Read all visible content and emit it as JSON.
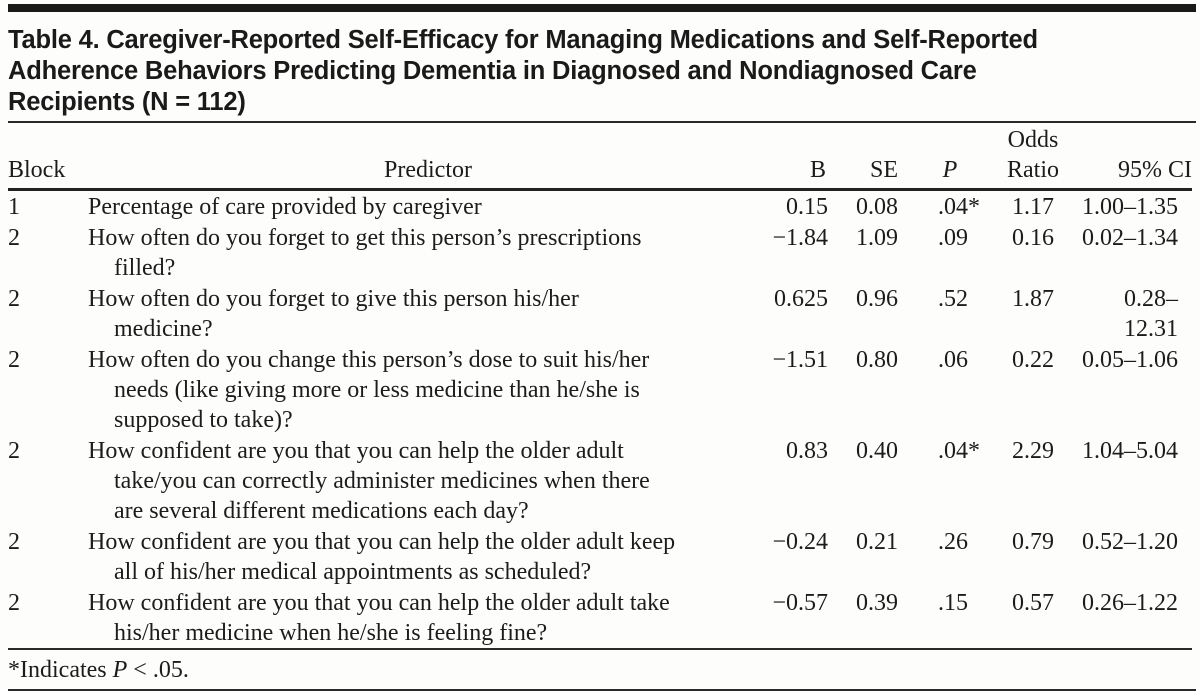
{
  "title": "Table 4. Caregiver-Reported Self-Efficacy for Managing Medications and Self-Reported\nAdherence Behaviors Predicting Dementia in Diagnosed and Nondiagnosed Care\nRecipients (N = 112)",
  "table": {
    "columns": {
      "block": "Block",
      "predictor": "Predictor",
      "b": "B",
      "se": "SE",
      "p": "P",
      "odds_ratio": "Odds\nRatio",
      "ci": "95% CI"
    },
    "rows": [
      {
        "block": "1",
        "predictor": "Percentage of care provided by caregiver",
        "b": "0.15",
        "se": "0.08",
        "p": ".04*",
        "odds_ratio": "1.17",
        "ci": "1.00–1.35"
      },
      {
        "block": "2",
        "predictor": "How often do you forget to get this person’s prescriptions\nfilled?",
        "b": "−1.84",
        "se": "1.09",
        "p": ".09",
        "odds_ratio": "0.16",
        "ci": "0.02–1.34"
      },
      {
        "block": "2",
        "predictor": "How often do you forget to give this person his/her\nmedicine?",
        "b": "0.625",
        "se": "0.96",
        "p": ".52",
        "odds_ratio": "1.87",
        "ci": "0.28–12.31"
      },
      {
        "block": "2",
        "predictor": "How often do you change this person’s dose to suit his/her\nneeds (like giving more or less medicine than he/she is\nsupposed to take)?",
        "b": "−1.51",
        "se": "0.80",
        "p": ".06",
        "odds_ratio": "0.22",
        "ci": "0.05–1.06"
      },
      {
        "block": "2",
        "predictor": "How confident are you that you can help the older adult\ntake/you can correctly administer medicines when there\nare several different medications each day?",
        "b": "0.83",
        "se": "0.40",
        "p": ".04*",
        "odds_ratio": "2.29",
        "ci": "1.04–5.04"
      },
      {
        "block": "2",
        "predictor": "How confident are you that you can help the older adult keep\nall of his/her medical appointments as scheduled?",
        "b": "−0.24",
        "se": "0.21",
        "p": ".26",
        "odds_ratio": "0.79",
        "ci": "0.52–1.20"
      },
      {
        "block": "2",
        "predictor": "How confident are you that you can help the older adult take\nhis/her medicine when he/she is feeling fine?",
        "b": "−0.57",
        "se": "0.39",
        "p": ".15",
        "odds_ratio": "0.57",
        "ci": "0.26–1.22"
      }
    ]
  },
  "footnote": {
    "prefix": "*Indicates ",
    "p_symbol": "P",
    "suffix": " < .05."
  },
  "colors": {
    "text": "#1c1c1c",
    "rule": "#2a2a2a",
    "bar": "#191919",
    "background": "#fdfdfc"
  }
}
